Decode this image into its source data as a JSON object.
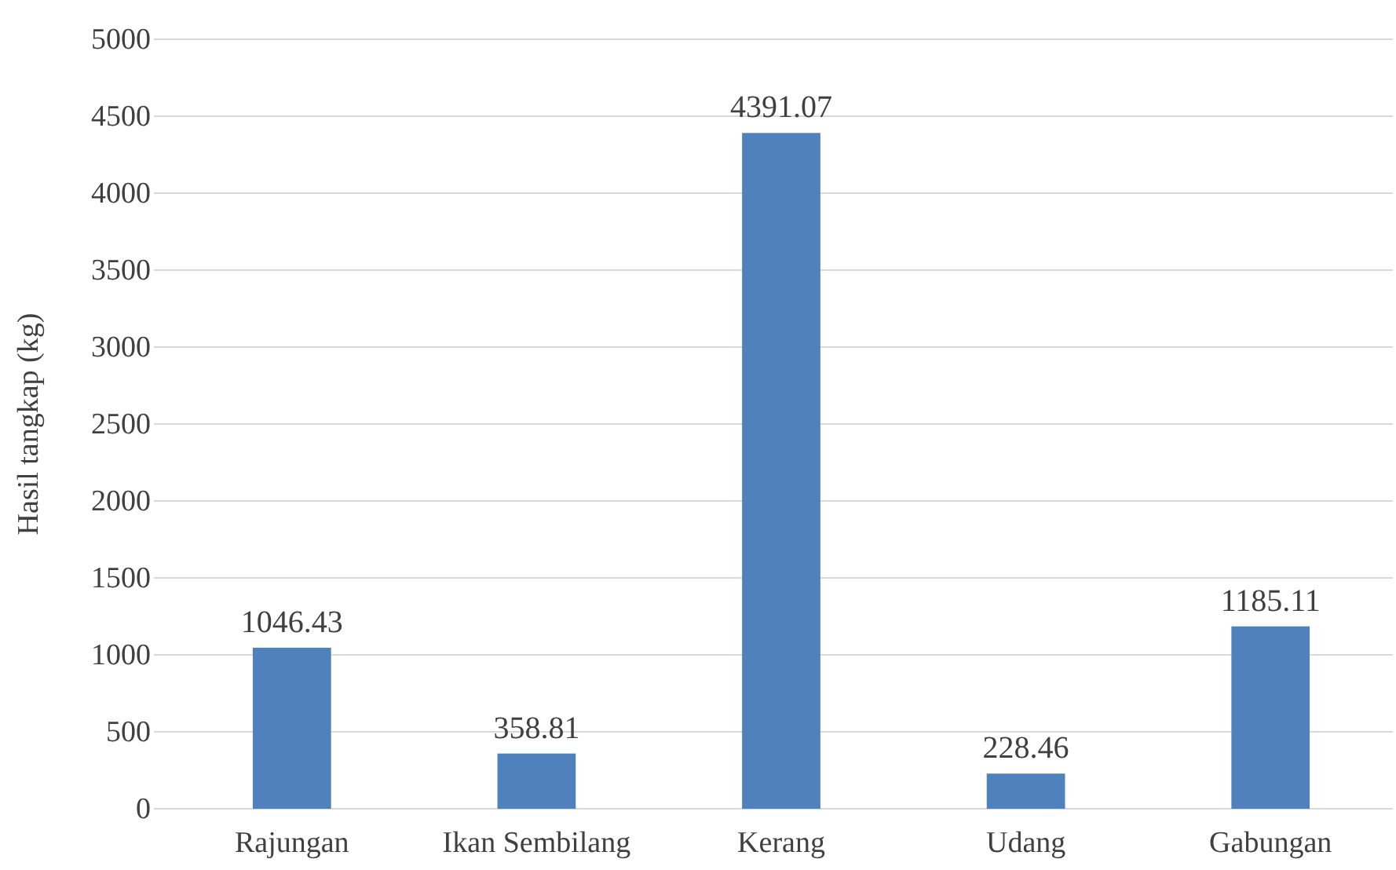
{
  "chart_data": {
    "type": "bar",
    "ylabel": "Hasil tangkap (kg)",
    "categories": [
      "Rajungan",
      "Ikan Sembilang",
      "Kerang",
      "Udang",
      "Gabungan"
    ],
    "values": [
      1046.43,
      358.81,
      4391.07,
      228.46,
      1185.11
    ],
    "color": "#4f81bd",
    "ylim": [
      0,
      5000
    ],
    "yticks": [
      0,
      500,
      1000,
      1500,
      2000,
      2500,
      3000,
      3500,
      4000,
      4500,
      5000
    ],
    "grid": "y",
    "data_labels": true
  }
}
